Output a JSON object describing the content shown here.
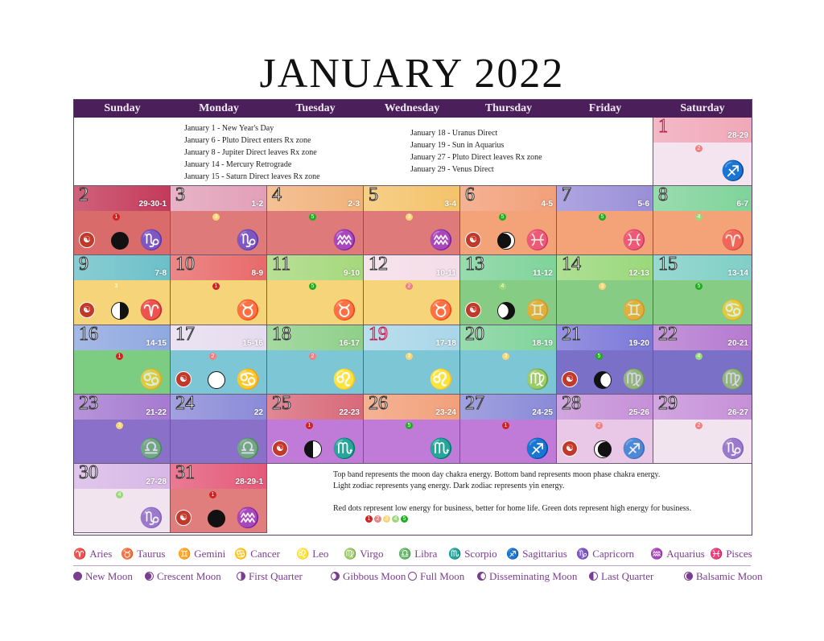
{
  "title": "JANUARY 2022",
  "weekdays": [
    "Sunday",
    "Monday",
    "Tuesday",
    "Wednesday",
    "Thursday",
    "Friday",
    "Saturday"
  ],
  "events_left": [
    "January 1 - New Year's Day",
    "January 6 - Pluto Direct enters Rx zone",
    "January 8 - Jupiter Direct leaves Rx zone",
    "January 14 - Mercury Retrograde",
    "January 15 - Saturn Direct leaves Rx zone"
  ],
  "events_right": [
    "January 18 - Uranus Direct",
    "January 19 - Sun in Aquarius",
    "January 27 - Pluto Direct leaves Rx zone",
    "January 29 - Venus Direct"
  ],
  "notes": {
    "line1": "Top band represents the moon day chakra energy.  Bottom band represents moon phase chakra energy.",
    "line2": "Light zodiac represents yang energy. Dark zodiac represents yin energy.",
    "line3": "Red dots represent low energy for business, better for home life. Green dots represent high energy for business.",
    "dots": [
      "1",
      "2",
      "3",
      "4",
      "5"
    ]
  },
  "days": [
    {
      "day": "1",
      "moon_days": "28-29",
      "dot": "2",
      "zodiac": "sagittarius-icon",
      "zodiac_glyph": "♐",
      "yin": true,
      "col": 6,
      "row": 0,
      "top": "#f0a8b8",
      "bottom": "#f3e4ef",
      "red": true
    },
    {
      "day": "2",
      "moon_days": "29-30-1",
      "dot": "1",
      "zodiac": "capricorn-icon",
      "zodiac_glyph": "♑",
      "yin": true,
      "col": 0,
      "row": 1,
      "top": "#c43a5a",
      "bottom": "#d96b6b",
      "moon": "new",
      "chakra": true
    },
    {
      "day": "3",
      "moon_days": "1-2",
      "dot": "3",
      "zodiac": "capricorn-icon",
      "zodiac_glyph": "♑",
      "yin": true,
      "col": 1,
      "row": 1,
      "top": "#e2a0b8",
      "bottom": "#de7a7a"
    },
    {
      "day": "4",
      "moon_days": "2-3",
      "dot": "5",
      "zodiac": "aquarius-icon",
      "zodiac_glyph": "♒",
      "yin": true,
      "col": 2,
      "row": 1,
      "top": "#f1b27a",
      "bottom": "#de7a7a"
    },
    {
      "day": "5",
      "moon_days": "3-4",
      "dot": "3",
      "zodiac": "aquarius-icon",
      "zodiac_glyph": "♒",
      "yin": true,
      "col": 3,
      "row": 1,
      "top": "#f4c36a",
      "bottom": "#de7a7a"
    },
    {
      "day": "6",
      "moon_days": "4-5",
      "dot": "5",
      "zodiac": "pisces-icon",
      "zodiac_glyph": "♓",
      "yin": false,
      "col": 4,
      "row": 1,
      "top": "#f2a07a",
      "bottom": "#f4a278",
      "moon": "crescent",
      "chakra": true
    },
    {
      "day": "7",
      "moon_days": "5-6",
      "dot": "5",
      "zodiac": "pisces-icon",
      "zodiac_glyph": "♓",
      "yin": false,
      "col": 5,
      "row": 1,
      "top": "#9a8fd8",
      "bottom": "#f4a278"
    },
    {
      "day": "8",
      "moon_days": "6-7",
      "dot": "4",
      "zodiac": "aries-icon",
      "zodiac_glyph": "♈",
      "yin": false,
      "col": 6,
      "row": 1,
      "top": "#7fd39a",
      "bottom": "#f4a278"
    },
    {
      "day": "9",
      "moon_days": "7-8",
      "dot": "3",
      "zodiac": "aries-icon",
      "zodiac_glyph": "♈",
      "yin": true,
      "col": 0,
      "row": 2,
      "top": "#6cc0c8",
      "bottom": "#f6d57a",
      "moon": "first-quarter",
      "chakra": true
    },
    {
      "day": "10",
      "moon_days": "8-9",
      "dot": "1",
      "zodiac": "taurus-icon",
      "zodiac_glyph": "♉",
      "yin": true,
      "col": 1,
      "row": 2,
      "top": "#e86a6a",
      "bottom": "#f6d57a"
    },
    {
      "day": "11",
      "moon_days": "9-10",
      "dot": "5",
      "zodiac": "taurus-icon",
      "zodiac_glyph": "♉",
      "yin": true,
      "col": 2,
      "row": 2,
      "top": "#a6d87c",
      "bottom": "#f6d57a"
    },
    {
      "day": "12",
      "moon_days": "10-11",
      "dot": "2",
      "zodiac": "taurus-icon",
      "zodiac_glyph": "♉",
      "yin": true,
      "col": 3,
      "row": 2,
      "top": "#f4dde8",
      "bottom": "#f6d57a"
    },
    {
      "day": "13",
      "moon_days": "11-12",
      "dot": "4",
      "zodiac": "gemini-icon",
      "zodiac_glyph": "♊",
      "yin": false,
      "col": 4,
      "row": 2,
      "top": "#7fd39a",
      "bottom": "#86cc84",
      "moon": "gibbous",
      "chakra": true
    },
    {
      "day": "14",
      "moon_days": "12-13",
      "dot": "3",
      "zodiac": "gemini-icon",
      "zodiac_glyph": "♊",
      "yin": false,
      "col": 5,
      "row": 2,
      "top": "#9ad87a",
      "bottom": "#86cc84"
    },
    {
      "day": "15",
      "moon_days": "13-14",
      "dot": "5",
      "zodiac": "cancer-icon",
      "zodiac_glyph": "♋",
      "yin": false,
      "col": 6,
      "row": 2,
      "top": "#7fcfc6",
      "bottom": "#86cc84"
    },
    {
      "day": "16",
      "moon_days": "14-15",
      "dot": "1",
      "zodiac": "cancer-icon",
      "zodiac_glyph": "♋",
      "yin": false,
      "col": 0,
      "row": 3,
      "top": "#8fa8e0",
      "bottom": "#7ccc82"
    },
    {
      "day": "17",
      "moon_days": "15-16",
      "dot": "2",
      "zodiac": "cancer-icon",
      "zodiac_glyph": "♋",
      "yin": true,
      "col": 1,
      "row": 3,
      "top": "#e6dcef",
      "bottom": "#7cc6d6",
      "moon": "full",
      "chakra": true
    },
    {
      "day": "18",
      "moon_days": "16-17",
      "dot": "2",
      "zodiac": "leo-icon",
      "zodiac_glyph": "♌",
      "yin": true,
      "col": 2,
      "row": 3,
      "top": "#8fd08a",
      "bottom": "#7cc6d6"
    },
    {
      "day": "19",
      "moon_days": "17-18",
      "dot": "3",
      "zodiac": "leo-icon",
      "zodiac_glyph": "♌",
      "yin": true,
      "col": 3,
      "row": 3,
      "top": "#a9d6e8",
      "bottom": "#7cc6d6",
      "red": true
    },
    {
      "day": "20",
      "moon_days": "18-19",
      "dot": "3",
      "zodiac": "virgo-icon",
      "zodiac_glyph": "♍",
      "yin": true,
      "col": 4,
      "row": 3,
      "top": "#7fd39a",
      "bottom": "#7cc6d6"
    },
    {
      "day": "21",
      "moon_days": "19-20",
      "dot": "5",
      "zodiac": "virgo-icon",
      "zodiac_glyph": "♍",
      "yin": false,
      "col": 5,
      "row": 3,
      "top": "#7b78d8",
      "bottom": "#7a70c8",
      "moon": "disseminating",
      "chakra": true
    },
    {
      "day": "22",
      "moon_days": "20-21",
      "dot": "4",
      "zodiac": "virgo-icon",
      "zodiac_glyph": "♍",
      "yin": false,
      "col": 6,
      "row": 3,
      "top": "#b57ad0",
      "bottom": "#7a70c8"
    },
    {
      "day": "23",
      "moon_days": "21-22",
      "dot": "3",
      "zodiac": "libra-icon",
      "zodiac_glyph": "♎",
      "yin": false,
      "col": 0,
      "row": 4,
      "top": "#a57ad0",
      "bottom": "#8a70c8"
    },
    {
      "day": "24",
      "moon_days": "22",
      "dot": "",
      "zodiac": "libra-icon",
      "zodiac_glyph": "♎",
      "yin": false,
      "col": 1,
      "row": 4,
      "top": "#8a8ad8",
      "bottom": "#8a70c8"
    },
    {
      "day": "25",
      "moon_days": "22-23",
      "dot": "1",
      "zodiac": "scorpio-icon",
      "zodiac_glyph": "♏",
      "yin": true,
      "col": 2,
      "row": 4,
      "top": "#d86a7a",
      "bottom": "#c07ad8",
      "moon": "last-quarter",
      "chakra": true
    },
    {
      "day": "26",
      "moon_days": "23-24",
      "dot": "5",
      "zodiac": "scorpio-icon",
      "zodiac_glyph": "♏",
      "yin": true,
      "col": 3,
      "row": 4,
      "top": "#f2a07a",
      "bottom": "#c07ad8"
    },
    {
      "day": "27",
      "moon_days": "24-25",
      "dot": "1",
      "zodiac": "sagittarius-icon",
      "zodiac_glyph": "♐",
      "yin": true,
      "col": 4,
      "row": 4,
      "top": "#8a8ad8",
      "bottom": "#c07ad8"
    },
    {
      "day": "28",
      "moon_days": "25-26",
      "dot": "2",
      "zodiac": "sagittarius-icon",
      "zodiac_glyph": "♐",
      "yin": false,
      "col": 5,
      "row": 4,
      "top": "#c690d8",
      "bottom": "#e8c8e6",
      "moon": "balsamic",
      "chakra": true
    },
    {
      "day": "29",
      "moon_days": "26-27",
      "dot": "2",
      "zodiac": "capricorn-icon",
      "zodiac_glyph": "♑",
      "yin": false,
      "col": 6,
      "row": 4,
      "top": "#c690d8",
      "bottom": "#f2e4ee"
    },
    {
      "day": "30",
      "moon_days": "27-28",
      "dot": "4",
      "zodiac": "capricorn-icon",
      "zodiac_glyph": "♑",
      "yin": false,
      "col": 0,
      "row": 5,
      "top": "#d8b8e6",
      "bottom": "#f2e4ee"
    },
    {
      "day": "31",
      "moon_days": "28-29-1",
      "dot": "1",
      "zodiac": "aquarius-icon",
      "zodiac_glyph": "♒",
      "yin": true,
      "col": 1,
      "row": 5,
      "top": "#e45a7a",
      "bottom": "#e07e7e",
      "moon": "new",
      "chakra": true
    }
  ],
  "zodiac_legend": [
    {
      "glyph": "♈",
      "label": "Aries",
      "icon": "aries-icon"
    },
    {
      "glyph": "♉",
      "label": "Taurus",
      "icon": "taurus-icon"
    },
    {
      "glyph": "♊",
      "label": "Gemini",
      "icon": "gemini-icon"
    },
    {
      "glyph": "♋",
      "label": "Cancer",
      "icon": "cancer-icon"
    },
    {
      "glyph": "♌",
      "label": "Leo",
      "icon": "leo-icon"
    },
    {
      "glyph": "♍",
      "label": "Virgo",
      "icon": "virgo-icon"
    },
    {
      "glyph": "♎",
      "label": "Libra",
      "icon": "libra-icon"
    },
    {
      "glyph": "♏",
      "label": "Scorpio",
      "icon": "scorpio-icon"
    },
    {
      "glyph": "♐",
      "label": "Sagittarius",
      "icon": "sagittarius-icon"
    },
    {
      "glyph": "♑",
      "label": "Capricorn",
      "icon": "capricorn-icon"
    },
    {
      "glyph": "♒",
      "label": "Aquarius",
      "icon": "aquarius-icon"
    },
    {
      "glyph": "♓",
      "label": "Pisces",
      "icon": "pisces-icon"
    }
  ],
  "moon_legend": [
    {
      "phase": "new",
      "label": "New Moon"
    },
    {
      "phase": "crescent",
      "label": "Crescent Moon"
    },
    {
      "phase": "first-quarter",
      "label": "First Quarter"
    },
    {
      "phase": "gibbous",
      "label": "Gibbous Moon"
    },
    {
      "phase": "full",
      "label": "Full Moon"
    },
    {
      "phase": "disseminating",
      "label": "Disseminating Moon"
    },
    {
      "phase": "last-quarter",
      "label": "Last Quarter"
    },
    {
      "phase": "balsamic",
      "label": "Balsamic Moon"
    }
  ],
  "colors": {
    "header": "#4a1f5a",
    "legend": "#7a3d92",
    "dot1": "#d62020",
    "dot2": "#f08080",
    "dot3": "#f6d57a",
    "dot4": "#9ad87a",
    "dot5": "#22aa22"
  }
}
